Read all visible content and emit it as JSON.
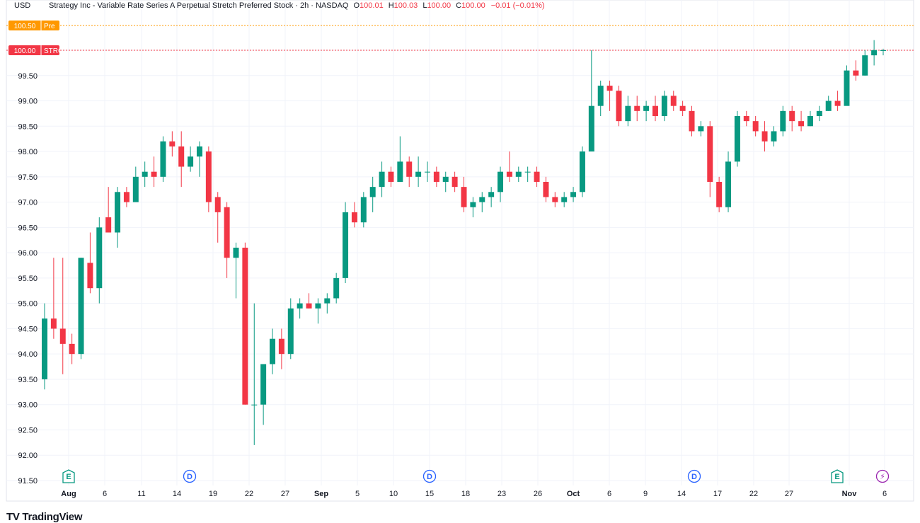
{
  "header": {
    "currency": "USD",
    "title": "Strategy Inc - Variable Rate Series A Perpetual Stretch Preferred Stock · 2h · NASDAQ",
    "open_label": "O",
    "open": "100.01",
    "high_label": "H",
    "high": "100.03",
    "low_label": "L",
    "low": "100.00",
    "close_label": "C",
    "close": "100.00",
    "change": "−0.01 (−0.01%)"
  },
  "price_tags": [
    {
      "value": "100.50",
      "label": "Pre",
      "color": "#ff9800"
    },
    {
      "value": "100.00",
      "label": "STRC",
      "color": "#f23645"
    }
  ],
  "events": [
    {
      "type": "E",
      "date": "Jul 31",
      "color": "#089981"
    },
    {
      "type": "D",
      "date": "Aug 15",
      "color": "#2962ff"
    },
    {
      "type": "D",
      "date": "Sep 15",
      "color": "#2962ff"
    },
    {
      "type": "D",
      "date": "Oct 15",
      "color": "#2962ff"
    },
    {
      "type": "E",
      "date": "Oct 30",
      "color": "#089981"
    },
    {
      "type": "⚡",
      "date": "Nov 5",
      "color": "#9c27b0"
    }
  ],
  "branding": {
    "logo": "TV TradingView"
  },
  "chart_data": {
    "type": "candlestick",
    "symbol": "STRC",
    "interval": "2h",
    "exchange": "NASDAQ",
    "y_axis": {
      "range": [
        91.5,
        100.5
      ],
      "ticks": [
        "100.00",
        "99.50",
        "99.00",
        "98.50",
        "98.00",
        "97.50",
        "97.00",
        "96.50",
        "96.00",
        "95.50",
        "95.00",
        "94.50",
        "94.00",
        "93.50",
        "93.00",
        "92.50",
        "92.00",
        "91.50"
      ]
    },
    "x_axis": {
      "ticks": [
        {
          "label": "Aug",
          "bold": true
        },
        {
          "label": "6"
        },
        {
          "label": "11"
        },
        {
          "label": "14"
        },
        {
          "label": "19"
        },
        {
          "label": "22"
        },
        {
          "label": "27"
        },
        {
          "label": "Sep",
          "bold": true
        },
        {
          "label": "5"
        },
        {
          "label": "10"
        },
        {
          "label": "15"
        },
        {
          "label": "18"
        },
        {
          "label": "23"
        },
        {
          "label": "26"
        },
        {
          "label": "Oct",
          "bold": true
        },
        {
          "label": "6"
        },
        {
          "label": "9"
        },
        {
          "label": "14"
        },
        {
          "label": "17"
        },
        {
          "label": "22"
        },
        {
          "label": "27"
        },
        {
          "label": "Nov",
          "bold": true
        },
        {
          "label": "6"
        }
      ]
    },
    "colors": {
      "up": "#089981",
      "down": "#f23645"
    },
    "ohlc_daily_approx": [
      [
        93.5,
        95.0,
        93.3,
        94.7
      ],
      [
        94.7,
        95.9,
        94.3,
        94.5
      ],
      [
        94.5,
        95.9,
        93.6,
        94.2
      ],
      [
        94.2,
        94.4,
        93.8,
        94.0
      ],
      [
        94.0,
        95.9,
        93.9,
        95.9
      ],
      [
        95.8,
        96.4,
        95.2,
        95.3
      ],
      [
        95.3,
        96.7,
        95.0,
        96.5
      ],
      [
        96.7,
        97.3,
        96.6,
        96.4
      ],
      [
        96.4,
        97.3,
        96.1,
        97.2
      ],
      [
        97.2,
        97.3,
        96.9,
        97.0
      ],
      [
        97.0,
        97.7,
        97.1,
        97.5
      ],
      [
        97.5,
        97.8,
        97.3,
        97.6
      ],
      [
        97.6,
        97.9,
        97.3,
        97.5
      ],
      [
        97.5,
        98.3,
        97.4,
        98.2
      ],
      [
        98.2,
        98.4,
        97.9,
        98.1
      ],
      [
        98.1,
        98.4,
        97.3,
        97.7
      ],
      [
        97.7,
        98.1,
        97.6,
        97.9
      ],
      [
        97.9,
        98.2,
        97.5,
        98.1
      ],
      [
        98.0,
        98.1,
        96.8,
        97.0
      ],
      [
        97.1,
        97.2,
        96.2,
        96.8
      ],
      [
        96.9,
        97.0,
        95.5,
        95.9
      ],
      [
        95.9,
        96.2,
        95.1,
        96.1
      ],
      [
        96.1,
        96.2,
        93.0,
        93.0
      ],
      [
        93.0,
        95.0,
        92.2,
        93.0
      ],
      [
        93.0,
        93.8,
        92.6,
        93.8
      ],
      [
        93.8,
        94.5,
        93.6,
        94.3
      ],
      [
        94.3,
        94.5,
        93.7,
        94.0
      ],
      [
        94.0,
        95.1,
        93.9,
        94.9
      ],
      [
        94.9,
        95.1,
        94.7,
        95.0
      ],
      [
        95.0,
        95.2,
        94.9,
        94.9
      ],
      [
        94.9,
        95.1,
        94.6,
        95.0
      ],
      [
        95.0,
        95.2,
        94.8,
        95.1
      ],
      [
        95.1,
        95.6,
        95.0,
        95.5
      ],
      [
        95.5,
        97.0,
        95.4,
        96.8
      ],
      [
        96.8,
        97.0,
        96.5,
        96.6
      ],
      [
        96.6,
        97.2,
        96.5,
        97.1
      ],
      [
        97.1,
        97.5,
        96.8,
        97.3
      ],
      [
        97.3,
        97.8,
        97.1,
        97.6
      ],
      [
        97.6,
        97.7,
        97.3,
        97.4
      ],
      [
        97.4,
        98.3,
        97.4,
        97.8
      ],
      [
        97.8,
        97.9,
        97.3,
        97.5
      ],
      [
        97.5,
        97.9,
        97.3,
        97.6
      ],
      [
        97.6,
        97.8,
        97.4,
        97.6
      ],
      [
        97.6,
        97.7,
        97.3,
        97.4
      ],
      [
        97.4,
        97.6,
        97.2,
        97.5
      ],
      [
        97.5,
        97.6,
        97.2,
        97.3
      ],
      [
        97.3,
        97.5,
        96.8,
        96.9
      ],
      [
        96.9,
        97.1,
        96.7,
        97.0
      ],
      [
        97.0,
        97.2,
        96.8,
        97.1
      ],
      [
        97.1,
        97.3,
        96.9,
        97.2
      ],
      [
        97.2,
        97.7,
        97.0,
        97.6
      ],
      [
        97.6,
        98.0,
        97.4,
        97.5
      ],
      [
        97.5,
        97.7,
        97.4,
        97.6
      ],
      [
        97.6,
        97.7,
        97.4,
        97.6
      ],
      [
        97.6,
        97.7,
        97.3,
        97.4
      ],
      [
        97.4,
        97.5,
        97.0,
        97.1
      ],
      [
        97.1,
        97.2,
        96.9,
        97.0
      ],
      [
        97.0,
        97.2,
        96.9,
        97.1
      ],
      [
        97.1,
        97.3,
        97.0,
        97.2
      ],
      [
        97.2,
        98.1,
        97.1,
        98.0
      ],
      [
        98.0,
        100.0,
        98.6,
        98.9
      ],
      [
        98.9,
        99.4,
        98.7,
        99.3
      ],
      [
        99.3,
        99.4,
        98.8,
        99.2
      ],
      [
        99.2,
        99.3,
        98.5,
        98.6
      ],
      [
        98.6,
        99.1,
        98.5,
        98.9
      ],
      [
        98.9,
        99.1,
        98.6,
        98.8
      ],
      [
        98.8,
        99.0,
        98.6,
        98.9
      ],
      [
        98.9,
        99.1,
        98.6,
        98.7
      ],
      [
        98.7,
        99.2,
        98.6,
        99.1
      ],
      [
        99.1,
        99.2,
        98.8,
        98.9
      ],
      [
        98.9,
        99.0,
        98.7,
        98.8
      ],
      [
        98.8,
        98.9,
        98.3,
        98.4
      ],
      [
        98.4,
        98.6,
        98.3,
        98.5
      ],
      [
        98.5,
        98.6,
        97.1,
        97.4
      ],
      [
        97.4,
        97.5,
        96.8,
        96.9
      ],
      [
        96.9,
        98.0,
        96.8,
        97.8
      ],
      [
        97.8,
        98.8,
        97.7,
        98.7
      ],
      [
        98.7,
        98.8,
        98.5,
        98.6
      ],
      [
        98.6,
        98.7,
        98.3,
        98.4
      ],
      [
        98.4,
        98.6,
        98.0,
        98.2
      ],
      [
        98.2,
        98.5,
        98.1,
        98.4
      ],
      [
        98.4,
        98.9,
        98.3,
        98.8
      ],
      [
        98.8,
        98.9,
        98.4,
        98.6
      ],
      [
        98.6,
        98.8,
        98.4,
        98.5
      ],
      [
        98.5,
        98.8,
        98.5,
        98.7
      ],
      [
        98.7,
        98.9,
        98.6,
        98.8
      ],
      [
        98.8,
        99.1,
        98.8,
        99.0
      ],
      [
        99.0,
        99.2,
        98.8,
        98.9
      ],
      [
        98.9,
        99.7,
        99.1,
        99.6
      ],
      [
        99.6,
        99.8,
        99.4,
        99.5
      ],
      [
        99.5,
        100.0,
        99.5,
        99.9
      ],
      [
        99.9,
        100.2,
        99.7,
        100.0
      ],
      [
        100.0,
        100.03,
        99.9,
        100.0
      ]
    ]
  }
}
